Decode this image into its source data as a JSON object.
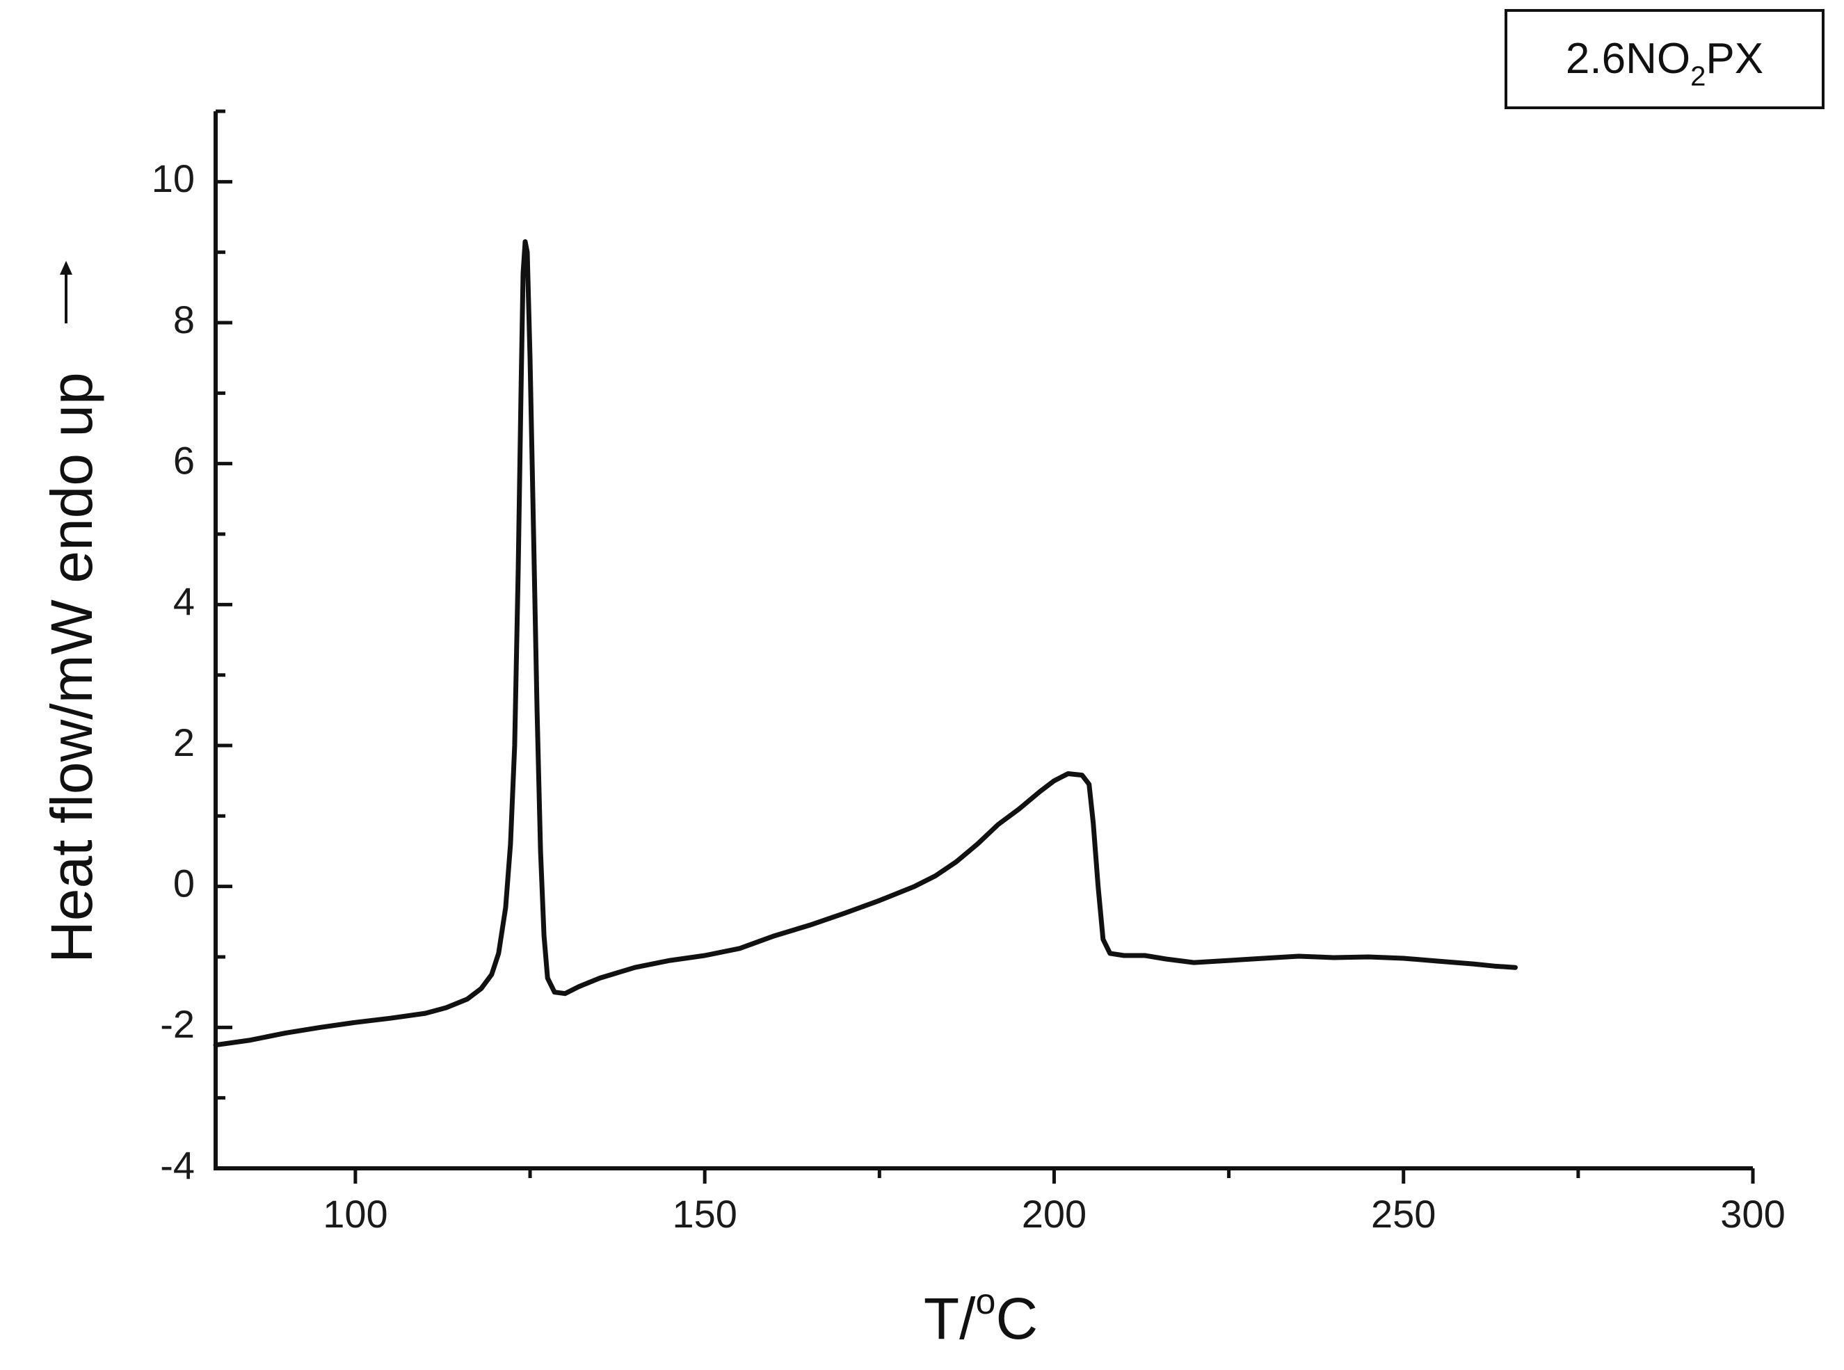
{
  "chart_data": {
    "type": "line",
    "xlabel": "T/°C",
    "xlabel_parts": {
      "main": "T/",
      "superscript": "o",
      "unit": "C"
    },
    "ylabel": "Heat flow/mW endo up",
    "ylabel_arrow": "→",
    "xlim": [
      80,
      300
    ],
    "ylim": [
      -4,
      11
    ],
    "x_ticks": [
      100,
      150,
      200,
      250,
      300
    ],
    "x_tick_labels": [
      "100",
      "150",
      "200",
      "250",
      "300"
    ],
    "x_minor_step": 25,
    "y_ticks": [
      -4,
      -2,
      0,
      2,
      4,
      6,
      8,
      10
    ],
    "y_tick_labels": [
      "-4",
      "-2",
      "0",
      "2",
      "4",
      "6",
      "8",
      "10"
    ],
    "y_minor_step": 1,
    "grid": false,
    "legend": {
      "placement": "top-right",
      "label": "2.6NO2PX",
      "label_parts": {
        "before": "2.6NO",
        "subscript": "2",
        "after": "PX"
      }
    },
    "series": [
      {
        "color": "#111111",
        "x": [
          80,
          85,
          90,
          95,
          100,
          105,
          110,
          113,
          116,
          118,
          119.5,
          120.5,
          121.5,
          122.2,
          122.8,
          123.3,
          123.7,
          124.0,
          124.3,
          124.6,
          125.0,
          125.5,
          126.0,
          126.5,
          127.0,
          127.5,
          128.5,
          130,
          132,
          135,
          140,
          145,
          150,
          155,
          160,
          165,
          170,
          175,
          180,
          183,
          186,
          189,
          192,
          195,
          198,
          200,
          202,
          204,
          205,
          205.6,
          206.3,
          207,
          208,
          210,
          213,
          216,
          220,
          225,
          230,
          235,
          240,
          245,
          250,
          255,
          260,
          263,
          266
        ],
        "y": [
          -2.25,
          -2.18,
          -2.08,
          -2.0,
          -1.93,
          -1.87,
          -1.8,
          -1.72,
          -1.6,
          -1.45,
          -1.25,
          -0.95,
          -0.3,
          0.6,
          2.0,
          4.5,
          7.0,
          8.7,
          9.15,
          9.0,
          7.5,
          5.0,
          2.5,
          0.5,
          -0.7,
          -1.3,
          -1.5,
          -1.52,
          -1.42,
          -1.3,
          -1.15,
          -1.05,
          -0.98,
          -0.88,
          -0.7,
          -0.55,
          -0.38,
          -0.2,
          0.0,
          0.15,
          0.35,
          0.6,
          0.88,
          1.1,
          1.35,
          1.5,
          1.6,
          1.58,
          1.45,
          0.9,
          0.0,
          -0.75,
          -0.95,
          -0.98,
          -0.98,
          -1.03,
          -1.08,
          -1.05,
          -1.02,
          -0.99,
          -1.01,
          -1.0,
          -1.02,
          -1.06,
          -1.1,
          -1.13,
          -1.15
        ]
      }
    ]
  }
}
